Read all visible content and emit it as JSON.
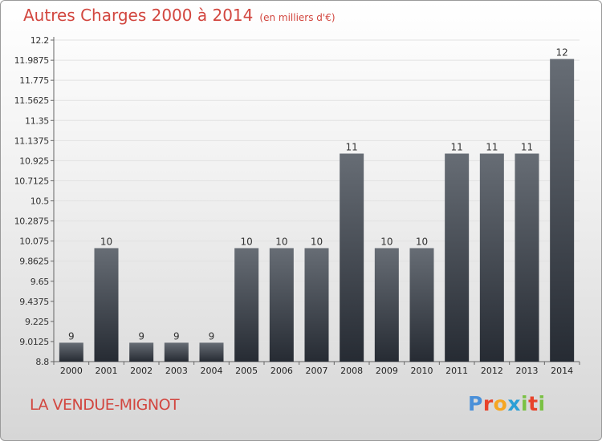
{
  "header": {
    "title": "Autres Charges 2000 à 2014",
    "unit": "(en milliers d'€)"
  },
  "footer": {
    "commune": "LA VENDUE-MIGNOT",
    "logo_letters": [
      "P",
      "r",
      "o",
      "x",
      "i",
      "t",
      "i"
    ],
    "logo_colors": [
      "#4a90d9",
      "#e8432b",
      "#f5a623",
      "#2a9fd6",
      "#7ac143",
      "#e8432b",
      "#7ac143"
    ]
  },
  "colors": {
    "title": "#d2463f",
    "bar_top": "#676d75",
    "bar_bottom": "#262b33",
    "grid": "#e2e2e2"
  },
  "chart_data": {
    "type": "bar",
    "title": "Autres Charges 2000 à 2014",
    "xlabel": "",
    "ylabel": "",
    "categories": [
      "2000",
      "2001",
      "2002",
      "2003",
      "2004",
      "2005",
      "2006",
      "2007",
      "2008",
      "2009",
      "2010",
      "2011",
      "2012",
      "2013",
      "2014"
    ],
    "values": [
      9,
      10,
      9,
      9,
      9,
      10,
      10,
      10,
      11,
      10,
      10,
      11,
      11,
      11,
      12
    ],
    "data_labels": [
      "9",
      "10",
      "9",
      "9",
      "9",
      "10",
      "10",
      "10",
      "11",
      "10",
      "10",
      "11",
      "11",
      "11",
      "12"
    ],
    "ylim": [
      8.8,
      12.2
    ],
    "yticks": [
      "8.8",
      "9.0125",
      "9.225",
      "9.4375",
      "9.65",
      "9.8625",
      "10.075",
      "10.2875",
      "10.5",
      "10.7125",
      "10.925",
      "11.1375",
      "11.35",
      "11.5625",
      "11.775",
      "11.9875",
      "12.2"
    ],
    "grid": true,
    "legend": "none"
  }
}
